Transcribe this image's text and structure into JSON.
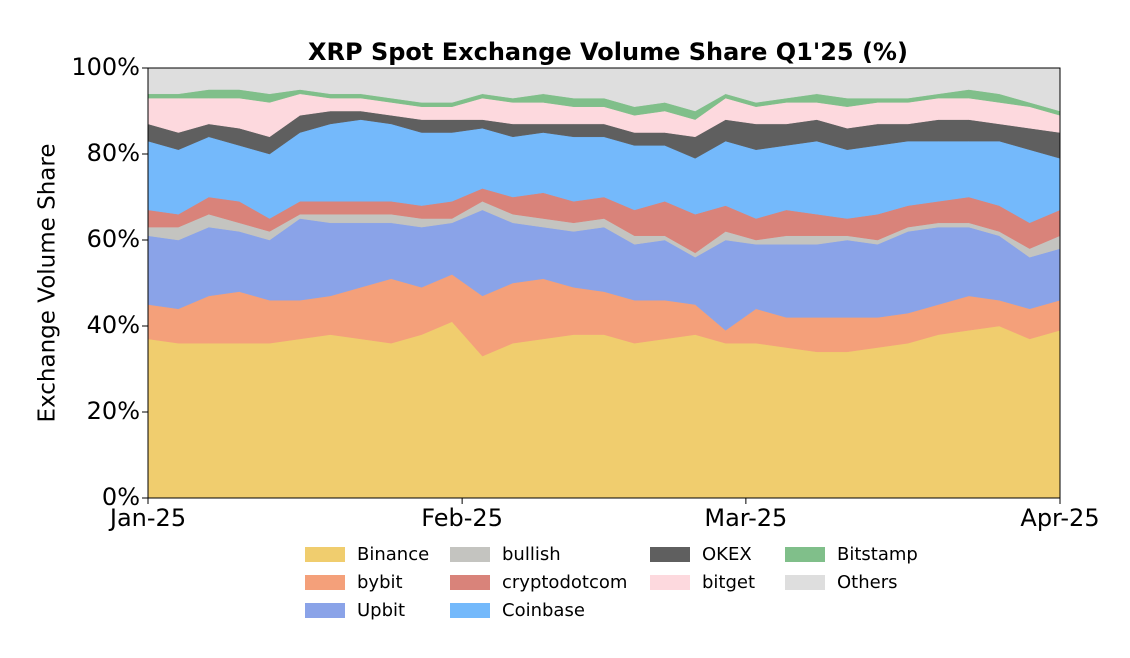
{
  "chart_data": {
    "type": "stacked_area",
    "title": "XRP Spot Exchange Volume Share Q1'25 (%)",
    "y_label": "Exchange Volume Share",
    "x": [
      0,
      3,
      6,
      9,
      12,
      15,
      18,
      21,
      24,
      27,
      30,
      33,
      36,
      39,
      42,
      45,
      48,
      51,
      54,
      57,
      60,
      63,
      66,
      69,
      72,
      75,
      78,
      81,
      84,
      87,
      90
    ],
    "xlim": [
      0,
      90
    ],
    "xticks": [
      {
        "value": 0,
        "label": "Jan-25"
      },
      {
        "value": 31,
        "label": "Feb-25"
      },
      {
        "value": 59,
        "label": "Mar-25"
      },
      {
        "value": 90,
        "label": "Apr-25"
      }
    ],
    "ylim": [
      0,
      100
    ],
    "yticks": [
      {
        "value": 0,
        "label": "0%"
      },
      {
        "value": 20,
        "label": "20%"
      },
      {
        "value": 40,
        "label": "40%"
      },
      {
        "value": 60,
        "label": "60%"
      },
      {
        "value": 80,
        "label": "80%"
      },
      {
        "value": 100,
        "label": "100%"
      }
    ],
    "series": [
      {
        "name": "Binance",
        "color": "#f0cd6e",
        "values": [
          37,
          36,
          36,
          36,
          36,
          37,
          38,
          37,
          36,
          38,
          41,
          33,
          36,
          37,
          38,
          38,
          36,
          37,
          38,
          36,
          36,
          35,
          34,
          34,
          35,
          36,
          38,
          39,
          40,
          37,
          39
        ]
      },
      {
        "name": "bybit",
        "color": "#f4a07a",
        "values": [
          8,
          8,
          11,
          12,
          10,
          9,
          9,
          12,
          15,
          11,
          11,
          14,
          14,
          14,
          11,
          10,
          10,
          9,
          7,
          3,
          8,
          7,
          8,
          8,
          7,
          7,
          7,
          8,
          6,
          7,
          7
        ]
      },
      {
        "name": "Upbit",
        "color": "#8aa3e8",
        "values": [
          16,
          16,
          16,
          14,
          14,
          19,
          17,
          15,
          13,
          14,
          12,
          20,
          14,
          12,
          13,
          15,
          13,
          14,
          11,
          21,
          15,
          17,
          17,
          18,
          17,
          19,
          18,
          16,
          15,
          12,
          12
        ]
      },
      {
        "name": "bullish",
        "color": "#c4c4c0",
        "values": [
          2,
          3,
          3,
          2,
          2,
          1,
          2,
          2,
          2,
          2,
          1,
          2,
          2,
          2,
          2,
          2,
          2,
          1,
          1,
          2,
          1,
          2,
          2,
          1,
          1,
          1,
          1,
          1,
          1,
          2,
          3
        ]
      },
      {
        "name": "cryptodotcom",
        "color": "#d9837a",
        "values": [
          4,
          3,
          4,
          5,
          3,
          3,
          3,
          3,
          3,
          3,
          4,
          3,
          4,
          6,
          5,
          5,
          6,
          8,
          9,
          6,
          5,
          6,
          5,
          4,
          6,
          5,
          5,
          6,
          6,
          6,
          6
        ]
      },
      {
        "name": "Coinbase",
        "color": "#74b9fb",
        "values": [
          16,
          15,
          14,
          13,
          15,
          16,
          18,
          19,
          18,
          17,
          16,
          14,
          14,
          14,
          15,
          14,
          15,
          13,
          13,
          15,
          16,
          15,
          17,
          16,
          16,
          15,
          14,
          13,
          15,
          17,
          12
        ]
      },
      {
        "name": "OKEX",
        "color": "#5f5f5f",
        "values": [
          4,
          4,
          3,
          4,
          4,
          4,
          3,
          2,
          2,
          3,
          3,
          2,
          3,
          2,
          3,
          3,
          3,
          3,
          5,
          5,
          6,
          5,
          5,
          5,
          5,
          4,
          5,
          5,
          4,
          5,
          6
        ]
      },
      {
        "name": "bitget",
        "color": "#fdd9de",
        "values": [
          6,
          8,
          6,
          7,
          8,
          5,
          3,
          3,
          3,
          3,
          3,
          5,
          5,
          5,
          4,
          4,
          4,
          5,
          4,
          5,
          4,
          5,
          4,
          5,
          5,
          5,
          5,
          5,
          5,
          5,
          4
        ]
      },
      {
        "name": "Bitstamp",
        "color": "#80bf8a",
        "values": [
          1,
          1,
          2,
          2,
          2,
          1,
          1,
          1,
          1,
          1,
          1,
          1,
          1,
          2,
          2,
          2,
          2,
          2,
          2,
          1,
          1,
          1,
          2,
          2,
          1,
          1,
          1,
          2,
          2,
          1,
          1
        ]
      },
      {
        "name": "Others",
        "color": "#dedede",
        "values": [
          6,
          6,
          5,
          5,
          6,
          5,
          6,
          6,
          7,
          8,
          8,
          6,
          7,
          6,
          7,
          7,
          9,
          8,
          10,
          6,
          8,
          7,
          6,
          7,
          7,
          7,
          6,
          5,
          6,
          8,
          10
        ]
      }
    ],
    "legend": "lower center"
  }
}
